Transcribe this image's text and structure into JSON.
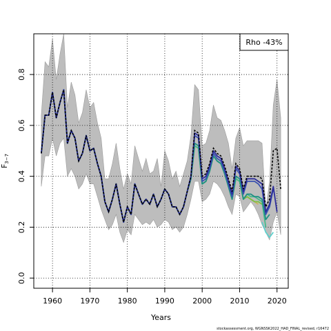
{
  "chart_data": {
    "type": "line",
    "title": "",
    "xlabel": "Years",
    "ylabel_main": "F",
    "ylabel_sub": "3−7",
    "xlim": [
      1955,
      2023
    ],
    "ylim": [
      -0.04,
      0.96
    ],
    "xticks": [
      1960,
      1970,
      1980,
      1990,
      2000,
      2010,
      2020
    ],
    "yticks": [
      0.0,
      0.2,
      0.4,
      0.6,
      0.8
    ],
    "ytick_labels": [
      "0.0",
      "0.2",
      "0.4",
      "0.6",
      "0.8"
    ],
    "grid": true,
    "legend_text": "Rho -43%",
    "legend_position": "top-right",
    "footnote": "stockassessment.org, WGNSSK2022_HAD_FINAL_revised, r16472",
    "colors": {
      "band": "#bdbdbd",
      "band_edge": "#9a9a9a",
      "main": "#000000",
      "peels": [
        "#2c2c9a",
        "#3a52b0",
        "#1f8f84",
        "#46b98a",
        "#7bbf3f",
        "#c8b45a",
        "#5fd0cc"
      ]
    },
    "band": {
      "x": [
        1957,
        1958,
        1959,
        1960,
        1961,
        1962,
        1963,
        1964,
        1965,
        1966,
        1967,
        1968,
        1969,
        1970,
        1971,
        1972,
        1973,
        1974,
        1975,
        1976,
        1977,
        1978,
        1979,
        1980,
        1981,
        1982,
        1983,
        1984,
        1985,
        1986,
        1987,
        1988,
        1989,
        1990,
        1991,
        1992,
        1993,
        1994,
        1995,
        1996,
        1997,
        1998,
        1999,
        2000,
        2001,
        2002,
        2003,
        2004,
        2005,
        2006,
        2007,
        2008,
        2009,
        2010,
        2011,
        2012,
        2013,
        2014,
        2015,
        2016,
        2017,
        2018,
        2019,
        2020,
        2021
      ],
      "lower": [
        0.36,
        0.48,
        0.48,
        0.55,
        0.48,
        0.53,
        0.55,
        0.4,
        0.43,
        0.4,
        0.35,
        0.37,
        0.41,
        0.37,
        0.37,
        0.32,
        0.27,
        0.23,
        0.19,
        0.21,
        0.25,
        0.18,
        0.14,
        0.19,
        0.17,
        0.25,
        0.23,
        0.21,
        0.22,
        0.21,
        0.23,
        0.2,
        0.21,
        0.23,
        0.22,
        0.19,
        0.2,
        0.18,
        0.2,
        0.25,
        0.31,
        0.38,
        0.38,
        0.3,
        0.31,
        0.33,
        0.38,
        0.37,
        0.35,
        0.32,
        0.28,
        0.25,
        0.33,
        0.32,
        0.26,
        0.28,
        0.3,
        0.28,
        0.25,
        0.21,
        0.18,
        0.15,
        0.22,
        0.26,
        0.17
      ],
      "upper": [
        0.64,
        0.85,
        0.83,
        0.94,
        0.78,
        0.88,
        0.96,
        0.67,
        0.77,
        0.72,
        0.61,
        0.65,
        0.74,
        0.67,
        0.69,
        0.61,
        0.55,
        0.39,
        0.39,
        0.45,
        0.53,
        0.43,
        0.35,
        0.41,
        0.37,
        0.52,
        0.47,
        0.42,
        0.47,
        0.41,
        0.42,
        0.47,
        0.36,
        0.5,
        0.46,
        0.39,
        0.42,
        0.36,
        0.41,
        0.46,
        0.56,
        0.76,
        0.74,
        0.52,
        0.53,
        0.58,
        0.68,
        0.63,
        0.62,
        0.58,
        0.53,
        0.43,
        0.55,
        0.59,
        0.52,
        0.54,
        0.54,
        0.54,
        0.54,
        0.53,
        0.27,
        0.38,
        0.68,
        0.78,
        0.63
      ]
    },
    "series": [
      {
        "x": [
          1957,
          1958,
          1959,
          1960,
          1961,
          1962,
          1963,
          1964,
          1965,
          1966,
          1967,
          1968,
          1969,
          1970,
          1971,
          1972,
          1973,
          1974,
          1975,
          1976,
          1977,
          1978,
          1979,
          1980,
          1981,
          1982,
          1983,
          1984,
          1985,
          1986,
          1987,
          1988,
          1989,
          1990,
          1991,
          1992,
          1993,
          1994,
          1995,
          1996,
          1997,
          1998,
          1999,
          2000,
          2001,
          2002,
          2003,
          2004,
          2005,
          2006,
          2007,
          2008,
          2009,
          2010,
          2011,
          2012,
          2013,
          2014,
          2015,
          2016,
          2017,
          2018,
          2019,
          2020,
          2021
        ],
        "values": [
          0.49,
          0.64,
          0.64,
          0.73,
          0.63,
          0.69,
          0.74,
          0.53,
          0.58,
          0.55,
          0.46,
          0.49,
          0.56,
          0.5,
          0.51,
          0.45,
          0.4,
          0.3,
          0.26,
          0.31,
          0.37,
          0.29,
          0.22,
          0.28,
          0.25,
          0.37,
          0.33,
          0.29,
          0.31,
          0.29,
          0.33,
          0.28,
          0.31,
          0.35,
          0.33,
          0.28,
          0.28,
          0.25,
          0.28,
          0.34,
          0.4,
          0.58,
          0.57,
          0.4,
          0.41,
          0.45,
          0.51,
          0.49,
          0.48,
          0.44,
          0.39,
          0.34,
          0.45,
          0.43,
          0.35,
          0.4,
          0.4,
          0.4,
          0.4,
          0.39,
          0.28,
          0.31,
          0.5,
          0.51,
          0.35
        ],
        "dashed": true
      },
      {
        "x": [
          1957,
          1958,
          1959,
          1960,
          1961,
          1962,
          1963,
          1964,
          1965,
          1966,
          1967,
          1968,
          1969,
          1970,
          1971,
          1972,
          1973,
          1974,
          1975,
          1976,
          1977,
          1978,
          1979,
          1980,
          1981,
          1982,
          1983,
          1984,
          1985,
          1986,
          1987,
          1988,
          1989,
          1990,
          1991,
          1992,
          1993,
          1994,
          1995,
          1996,
          1997,
          1998,
          1999,
          2000,
          2001,
          2002,
          2003,
          2004,
          2005,
          2006,
          2007,
          2008,
          2009,
          2010,
          2011,
          2012,
          2013,
          2014,
          2015,
          2016,
          2017,
          2018,
          2019,
          2020
        ],
        "values": [
          0.49,
          0.64,
          0.64,
          0.73,
          0.63,
          0.69,
          0.74,
          0.53,
          0.58,
          0.55,
          0.46,
          0.49,
          0.56,
          0.5,
          0.51,
          0.45,
          0.4,
          0.3,
          0.26,
          0.31,
          0.37,
          0.29,
          0.22,
          0.28,
          0.25,
          0.37,
          0.33,
          0.29,
          0.31,
          0.29,
          0.33,
          0.28,
          0.31,
          0.35,
          0.33,
          0.28,
          0.28,
          0.25,
          0.28,
          0.34,
          0.4,
          0.57,
          0.56,
          0.39,
          0.4,
          0.44,
          0.5,
          0.48,
          0.47,
          0.43,
          0.38,
          0.33,
          0.44,
          0.42,
          0.34,
          0.39,
          0.39,
          0.39,
          0.38,
          0.37,
          0.26,
          0.29,
          0.36,
          0.26
        ],
        "dashed": false
      },
      {
        "x": [
          1957,
          1958,
          1959,
          1960,
          1961,
          1962,
          1963,
          1964,
          1965,
          1966,
          1967,
          1968,
          1969,
          1970,
          1971,
          1972,
          1973,
          1974,
          1975,
          1976,
          1977,
          1978,
          1979,
          1980,
          1981,
          1982,
          1983,
          1984,
          1985,
          1986,
          1987,
          1988,
          1989,
          1990,
          1991,
          1992,
          1993,
          1994,
          1995,
          1996,
          1997,
          1998,
          1999,
          2000,
          2001,
          2002,
          2003,
          2004,
          2005,
          2006,
          2007,
          2008,
          2009,
          2010,
          2011,
          2012,
          2013,
          2014,
          2015,
          2016,
          2017,
          2018,
          2019
        ],
        "values": [
          0.49,
          0.64,
          0.64,
          0.73,
          0.63,
          0.69,
          0.74,
          0.53,
          0.58,
          0.55,
          0.46,
          0.49,
          0.56,
          0.5,
          0.51,
          0.45,
          0.4,
          0.3,
          0.26,
          0.31,
          0.37,
          0.29,
          0.22,
          0.28,
          0.25,
          0.37,
          0.33,
          0.29,
          0.31,
          0.29,
          0.33,
          0.28,
          0.31,
          0.35,
          0.33,
          0.28,
          0.28,
          0.25,
          0.28,
          0.34,
          0.4,
          0.56,
          0.55,
          0.38,
          0.39,
          0.43,
          0.49,
          0.47,
          0.46,
          0.42,
          0.37,
          0.32,
          0.43,
          0.41,
          0.33,
          0.38,
          0.38,
          0.38,
          0.37,
          0.35,
          0.25,
          0.28,
          0.35
        ],
        "dashed": false
      },
      {
        "x": [
          1957,
          1958,
          1959,
          1960,
          1961,
          1962,
          1963,
          1964,
          1965,
          1966,
          1967,
          1968,
          1969,
          1970,
          1971,
          1972,
          1973,
          1974,
          1975,
          1976,
          1977,
          1978,
          1979,
          1980,
          1981,
          1982,
          1983,
          1984,
          1985,
          1986,
          1987,
          1988,
          1989,
          1990,
          1991,
          1992,
          1993,
          1994,
          1995,
          1996,
          1997,
          1998,
          1999,
          2000,
          2001,
          2002,
          2003,
          2004,
          2005,
          2006,
          2007,
          2008,
          2009,
          2010,
          2011,
          2012,
          2013,
          2014,
          2015,
          2016,
          2017,
          2018
        ],
        "values": [
          0.49,
          0.64,
          0.64,
          0.73,
          0.63,
          0.69,
          0.74,
          0.53,
          0.58,
          0.55,
          0.46,
          0.49,
          0.56,
          0.5,
          0.51,
          0.45,
          0.4,
          0.3,
          0.26,
          0.31,
          0.37,
          0.29,
          0.22,
          0.28,
          0.25,
          0.37,
          0.33,
          0.29,
          0.31,
          0.29,
          0.33,
          0.28,
          0.31,
          0.35,
          0.33,
          0.28,
          0.28,
          0.25,
          0.28,
          0.34,
          0.39,
          0.53,
          0.52,
          0.37,
          0.38,
          0.42,
          0.48,
          0.46,
          0.45,
          0.41,
          0.36,
          0.31,
          0.4,
          0.39,
          0.31,
          0.33,
          0.33,
          0.32,
          0.32,
          0.31,
          0.23,
          0.25
        ],
        "dashed": false
      },
      {
        "x": [
          1957,
          1958,
          1959,
          1960,
          1961,
          1962,
          1963,
          1964,
          1965,
          1966,
          1967,
          1968,
          1969,
          1970,
          1971,
          1972,
          1973,
          1974,
          1975,
          1976,
          1977,
          1978,
          1979,
          1980,
          1981,
          1982,
          1983,
          1984,
          1985,
          1986,
          1987,
          1988,
          1989,
          1990,
          1991,
          1992,
          1993,
          1994,
          1995,
          1996,
          1997,
          1998,
          1999,
          2000,
          2001,
          2002,
          2003,
          2004,
          2005,
          2006,
          2007,
          2008,
          2009,
          2010,
          2011,
          2012,
          2013,
          2014,
          2015,
          2016,
          2017
        ],
        "values": [
          0.49,
          0.64,
          0.64,
          0.73,
          0.63,
          0.69,
          0.74,
          0.53,
          0.58,
          0.55,
          0.46,
          0.49,
          0.56,
          0.5,
          0.51,
          0.45,
          0.4,
          0.3,
          0.26,
          0.31,
          0.37,
          0.29,
          0.22,
          0.28,
          0.25,
          0.37,
          0.33,
          0.29,
          0.31,
          0.29,
          0.33,
          0.28,
          0.31,
          0.35,
          0.33,
          0.28,
          0.28,
          0.25,
          0.28,
          0.34,
          0.39,
          0.52,
          0.51,
          0.37,
          0.38,
          0.42,
          0.48,
          0.46,
          0.45,
          0.41,
          0.36,
          0.31,
          0.39,
          0.38,
          0.31,
          0.33,
          0.32,
          0.32,
          0.31,
          0.3,
          0.2
        ],
        "dashed": false
      },
      {
        "x": [
          1957,
          1958,
          1959,
          1960,
          1961,
          1962,
          1963,
          1964,
          1965,
          1966,
          1967,
          1968,
          1969,
          1970,
          1971,
          1972,
          1973,
          1974,
          1975,
          1976,
          1977,
          1978,
          1979,
          1980,
          1981,
          1982,
          1983,
          1984,
          1985,
          1986,
          1987,
          1988,
          1989,
          1990,
          1991,
          1992,
          1993,
          1994,
          1995,
          1996,
          1997,
          1998,
          1999,
          2000,
          2001,
          2002,
          2003,
          2004,
          2005,
          2006,
          2007,
          2008,
          2009,
          2010,
          2011,
          2012,
          2013,
          2014,
          2015,
          2016
        ],
        "values": [
          0.49,
          0.64,
          0.64,
          0.73,
          0.63,
          0.69,
          0.74,
          0.53,
          0.58,
          0.55,
          0.46,
          0.49,
          0.56,
          0.5,
          0.51,
          0.45,
          0.4,
          0.3,
          0.26,
          0.31,
          0.37,
          0.29,
          0.22,
          0.28,
          0.25,
          0.37,
          0.33,
          0.29,
          0.31,
          0.29,
          0.33,
          0.28,
          0.31,
          0.35,
          0.33,
          0.28,
          0.28,
          0.25,
          0.28,
          0.34,
          0.39,
          0.52,
          0.51,
          0.37,
          0.38,
          0.42,
          0.48,
          0.46,
          0.45,
          0.41,
          0.36,
          0.31,
          0.39,
          0.38,
          0.31,
          0.32,
          0.31,
          0.3,
          0.3,
          0.29
        ],
        "dashed": false
      },
      {
        "x": [
          1957,
          1958,
          1959,
          1960,
          1961,
          1962,
          1963,
          1964,
          1965,
          1966,
          1967,
          1968,
          1969,
          1970,
          1971,
          1972,
          1973,
          1974,
          1975,
          1976,
          1977,
          1978,
          1979,
          1980,
          1981,
          1982,
          1983,
          1984,
          1985,
          1986,
          1987,
          1988,
          1989,
          1990,
          1991,
          1992,
          1993,
          1994,
          1995,
          1996,
          1997,
          1998,
          1999,
          2000,
          2001,
          2002,
          2003,
          2004,
          2005,
          2006,
          2007,
          2008,
          2009,
          2010,
          2011,
          2012,
          2013,
          2014,
          2015
        ],
        "values": [
          0.49,
          0.64,
          0.64,
          0.73,
          0.63,
          0.69,
          0.74,
          0.53,
          0.58,
          0.55,
          0.46,
          0.49,
          0.56,
          0.5,
          0.51,
          0.45,
          0.4,
          0.3,
          0.26,
          0.31,
          0.37,
          0.29,
          0.22,
          0.28,
          0.25,
          0.37,
          0.33,
          0.29,
          0.31,
          0.29,
          0.33,
          0.28,
          0.31,
          0.35,
          0.33,
          0.28,
          0.28,
          0.25,
          0.28,
          0.34,
          0.39,
          0.52,
          0.51,
          0.37,
          0.38,
          0.42,
          0.48,
          0.46,
          0.45,
          0.41,
          0.36,
          0.31,
          0.39,
          0.38,
          0.31,
          0.32,
          0.31,
          0.3,
          0.29
        ],
        "dashed": false
      },
      {
        "x": [
          2016,
          2017,
          2018,
          2019
        ],
        "values": [
          0.22,
          0.18,
          0.16,
          0.18
        ],
        "dashed": false
      }
    ]
  }
}
